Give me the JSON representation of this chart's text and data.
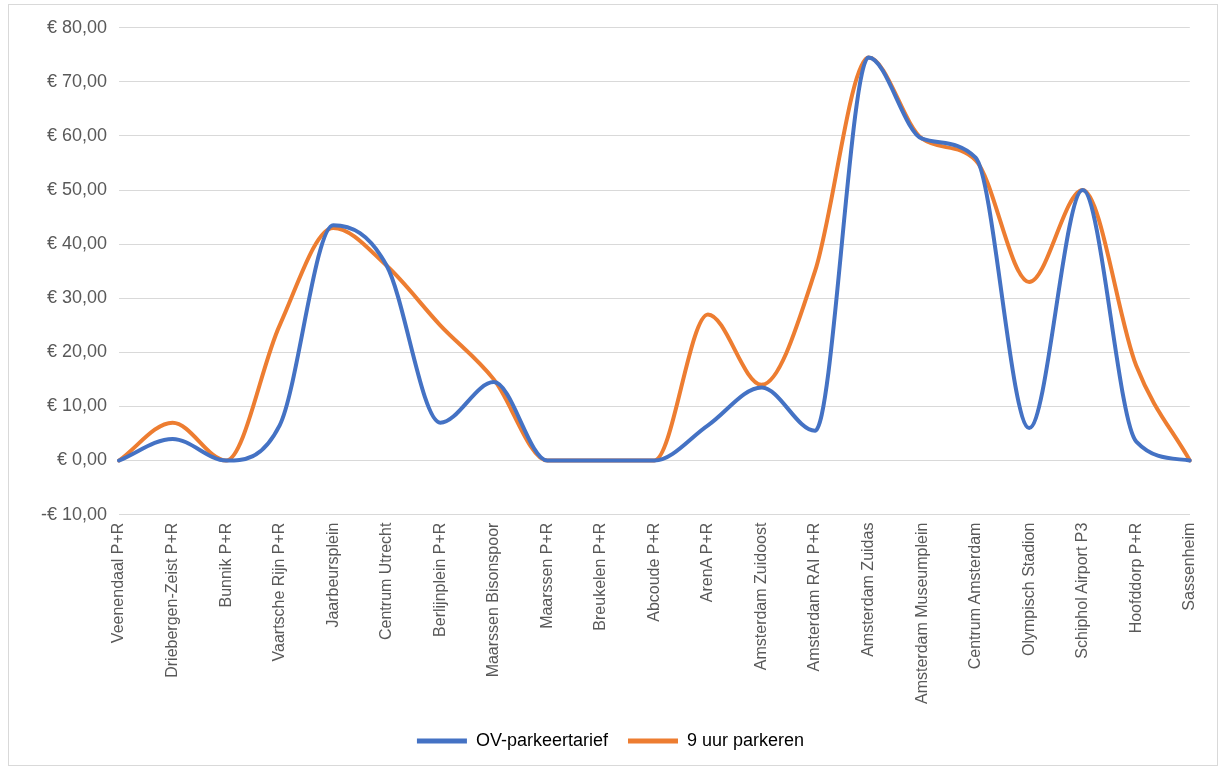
{
  "chart_data": {
    "type": "line",
    "categories": [
      "Veenendaal P+R",
      "Driebergen-Zeist P+R",
      "Bunnik P+R",
      "Vaartsche Rijn P+R",
      "Jaarbeursplein",
      "Centrum Utrecht",
      "Berlijnplein P+R",
      "Maarssen Bisonspoor",
      "Maarssen P+R",
      "Breukelen P+R",
      "Abcoude P+R",
      "ArenA P+R",
      "Amsterdam Zuidoost",
      "Amsterdam RAI P+R",
      "Amsterdam Zuidas",
      "Amsterdam Museumplein",
      "Centrum Amsterdam",
      "Olympisch Stadion",
      "Schiphol Airport P3",
      "Hoofddorp P+R",
      "Sassenheim"
    ],
    "series": [
      {
        "name": "OV-parkeertarief",
        "color": "#4472c4",
        "values": [
          0,
          4,
          0,
          6.5,
          43.5,
          36,
          7,
          14.5,
          0,
          0,
          0,
          6.5,
          13.5,
          5.5,
          74.5,
          59.5,
          56,
          6,
          50,
          3.5,
          0
        ]
      },
      {
        "name": "9 uur parkeren",
        "color": "#ed7d31",
        "values": [
          0,
          7,
          0,
          25,
          43,
          36,
          25,
          15,
          0,
          0,
          0,
          27,
          14,
          35,
          74.5,
          59.5,
          55.5,
          33,
          50,
          17.5,
          0
        ]
      }
    ],
    "ylim": [
      -10,
      80
    ],
    "yticks": [
      {
        "value": -10,
        "label": "-€ 10,00"
      },
      {
        "value": 0,
        "label": "€ 0,00"
      },
      {
        "value": 10,
        "label": "€ 10,00"
      },
      {
        "value": 20,
        "label": "€ 20,00"
      },
      {
        "value": 30,
        "label": "€ 30,00"
      },
      {
        "value": 40,
        "label": "€ 40,00"
      },
      {
        "value": 50,
        "label": "€ 50,00"
      },
      {
        "value": 60,
        "label": "€ 60,00"
      },
      {
        "value": 70,
        "label": "€ 70,00"
      },
      {
        "value": 80,
        "label": "€ 80,00"
      }
    ],
    "grid": "y",
    "legend": "bottom",
    "marker": "none",
    "line_style": "solid"
  }
}
